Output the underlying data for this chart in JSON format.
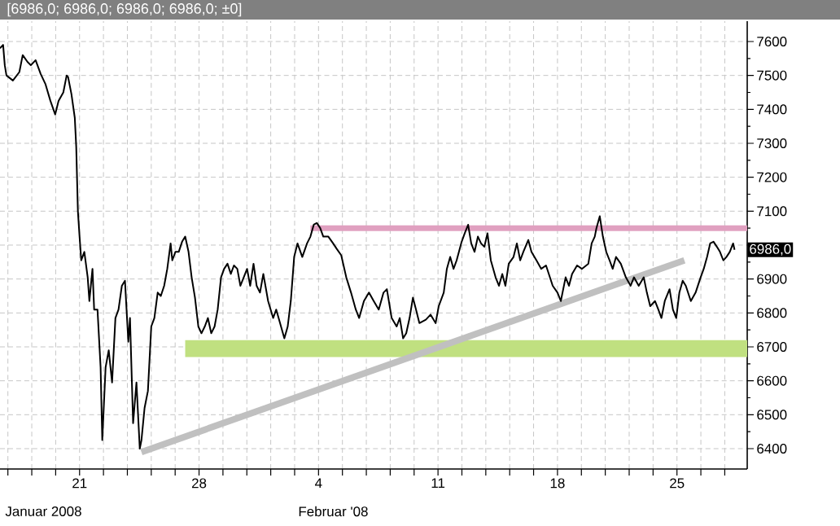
{
  "chart_data": {
    "type": "line",
    "title": "[6986,0; 6986,0; 6986,0; 6986,0; ±0]",
    "xlim": [
      "2008-01-16T08:07",
      "2008-02-29T02:47"
    ],
    "ylim": [
      6340,
      7660
    ],
    "xticks": [
      {
        "value": "2008-01-16T19:12",
        "label": null
      },
      {
        "value": "2008-01-18T04:48",
        "label": null
      },
      {
        "value": "2008-01-19T14:24",
        "label": null
      },
      {
        "value": "2008-01-21",
        "label": "21"
      },
      {
        "value": "2008-01-22T09:36",
        "label": null
      },
      {
        "value": "2008-01-23T19:12",
        "label": null
      },
      {
        "value": "2008-01-25T04:48",
        "label": null
      },
      {
        "value": "2008-01-26T14:24",
        "label": null
      },
      {
        "value": "2008-01-28",
        "label": "28"
      },
      {
        "value": "2008-01-29T09:36",
        "label": null
      },
      {
        "value": "2008-01-30T19:12",
        "label": null
      },
      {
        "value": "2008-02-01T04:48",
        "label": null
      },
      {
        "value": "2008-02-02T14:24",
        "label": null
      },
      {
        "value": "2008-02-04",
        "label": "4"
      },
      {
        "value": "2008-02-05T09:36",
        "label": null
      },
      {
        "value": "2008-02-06T19:12",
        "label": null
      },
      {
        "value": "2008-02-08T04:48",
        "label": null
      },
      {
        "value": "2008-02-09T14:24",
        "label": null
      },
      {
        "value": "2008-02-11",
        "label": "11"
      },
      {
        "value": "2008-02-12T09:36",
        "label": null
      },
      {
        "value": "2008-02-13T19:12",
        "label": null
      },
      {
        "value": "2008-02-15T04:48",
        "label": null
      },
      {
        "value": "2008-02-16T14:24",
        "label": null
      },
      {
        "value": "2008-02-18",
        "label": "18"
      },
      {
        "value": "2008-02-19T09:36",
        "label": null
      },
      {
        "value": "2008-02-20T19:12",
        "label": null
      },
      {
        "value": "2008-02-22T04:48",
        "label": null
      },
      {
        "value": "2008-02-23T14:24",
        "label": null
      },
      {
        "value": "2008-02-25",
        "label": "25"
      },
      {
        "value": "2008-02-26T09:36",
        "label": null
      },
      {
        "value": "2008-02-27T19:12",
        "label": null
      }
    ],
    "yticks": [
      6400,
      6500,
      6600,
      6700,
      6800,
      6900,
      {
        "value": 7000,
        "label": null
      },
      7100,
      7200,
      7300,
      7400,
      7500,
      7600
    ],
    "grid": true,
    "annotations": [
      "6986,0",
      "Januar 2008",
      "Februar '08"
    ],
    "series": [
      {
        "type": "line",
        "color": "#c0e080",
        "x": [
          "2008-01-27T04:31",
          "2008-02-29T02:47"
        ],
        "values": [
          6695,
          6695
        ]
      },
      {
        "type": "line",
        "color": "#c0c0c0",
        "x": [
          "2008-01-24T15:01",
          "2008-02-25T10:25"
        ],
        "values": [
          6390,
          6955
        ]
      },
      {
        "type": "line",
        "color": "#e0a0c0",
        "x": [
          "2008-02-03T12:35",
          "2008-02-29T02:47"
        ],
        "values": [
          7050,
          7050
        ]
      },
      {
        "color": "#000000",
        "x": [
          "2008-01-16T08:07",
          "2008-01-16T12:29",
          "2008-01-16T14:50",
          "2008-01-16T17:11",
          "2008-01-17T02:15",
          "2008-01-17T11:20",
          "2008-01-17T16:02",
          "2008-01-17T22:45",
          "2008-01-18T03:27",
          "2008-01-18T10:11",
          "2008-01-18T17:14",
          "2008-01-18T23:57",
          "2008-01-19T07:00",
          "2008-01-19T13:44",
          "2008-01-19T18:26",
          "2008-01-20T01:09",
          "2008-01-20T05:51",
          "2008-01-20T07:52",
          "2008-01-20T12:35",
          "2008-01-20T17:17",
          "2008-01-20T19:18",
          "2008-01-20T21:39",
          "2008-01-21T00:00",
          "2008-01-21T02:21",
          "2008-01-21T06:43",
          "2008-01-21T11:25",
          "2008-01-21T13:47",
          "2008-01-21T18:09",
          "2008-01-21T20:30",
          "2008-01-22T01:12",
          "2008-01-22T05:34",
          "2008-01-22T07:55",
          "2008-01-22T12:37",
          "2008-01-22T17:00",
          "2008-01-22T21:42",
          "2008-01-23T02:24",
          "2008-01-23T06:46",
          "2008-01-23T11:28",
          "2008-01-23T15:50",
          "2008-01-23T20:33",
          "2008-01-23T22:54",
          "2008-01-24T03:16",
          "2008-01-24T07:58",
          "2008-01-24T12:40",
          "2008-01-24T15:01",
          "2008-01-24T19:24",
          "2008-01-25T00:06",
          "2008-01-25T04:48",
          "2008-01-25T09:10",
          "2008-01-25T13:52",
          "2008-01-25T18:14",
          "2008-01-25T22:57",
          "2008-01-26T03:19",
          "2008-01-26T08:01",
          "2008-01-26T10:22",
          "2008-01-26T14:44",
          "2008-01-26T19:26",
          "2008-01-27T00:09",
          "2008-01-27T04:31",
          "2008-01-27T09:13",
          "2008-01-27T13:35",
          "2008-01-27T18:17",
          "2008-01-27T23:00",
          "2008-01-28T03:22",
          "2008-01-28T08:04",
          "2008-01-28T12:26",
          "2008-01-28T17:08",
          "2008-01-28T21:50",
          "2008-01-29T02:12",
          "2008-01-29T06:55",
          "2008-01-29T11:17",
          "2008-01-29T15:59",
          "2008-01-29T20:41",
          "2008-01-30T01:03",
          "2008-01-30T05:46",
          "2008-01-30T10:08",
          "2008-01-30T14:50",
          "2008-01-30T19:32",
          "2008-01-30T23:54",
          "2008-01-31T04:36",
          "2008-01-31T08:59",
          "2008-01-31T13:41",
          "2008-01-31T18:23",
          "2008-02-01T01:06",
          "2008-02-01T08:10",
          "2008-02-01T12:32",
          "2008-02-01T17:14",
          "2008-02-01T23:57",
          "2008-02-02T04:39",
          "2008-02-02T09:01",
          "2008-02-02T13:44",
          "2008-02-02T18:26",
          "2008-02-03T01:09",
          "2008-02-03T07:52",
          "2008-02-03T12:35",
          "2008-02-03T17:17",
          "2008-02-03T21:39",
          "2008-02-04T02:21",
          "2008-02-04T06:43",
          "2008-02-04T13:47",
          "2008-02-04T20:30",
          "2008-02-05T01:12",
          "2008-02-05T07:55",
          "2008-02-05T14:59",
          "2008-02-05T21:42",
          "2008-02-06T04:25",
          "2008-02-06T09:07",
          "2008-02-06T15:50",
          "2008-02-06T22:54",
          "2008-02-07T05:37",
          "2008-02-07T12:40",
          "2008-02-07T19:24",
          "2008-02-08T00:06",
          "2008-02-08T06:49",
          "2008-02-08T13:52",
          "2008-02-08T18:14",
          "2008-02-08T22:57",
          "2008-02-09T03:19",
          "2008-02-09T08:01",
          "2008-02-09T12:43",
          "2008-02-09T17:05",
          "2008-02-09T21:48",
          "2008-02-10T06:52",
          "2008-02-10T13:35",
          "2008-02-10T20:38",
          "2008-02-11T01:00",
          "2008-02-11T08:04",
          "2008-02-11T12:26",
          "2008-02-11T17:08",
          "2008-02-11T21:50",
          "2008-02-12T02:12",
          "2008-02-12T09:16",
          "2008-02-12T13:38",
          "2008-02-12T18:20",
          "2008-02-12T22:42",
          "2008-02-13T03:24",
          "2008-02-13T08:07",
          "2008-02-13T12:29",
          "2008-02-13T17:11",
          "2008-02-13T21:33",
          "2008-02-14T02:15",
          "2008-02-14T08:59",
          "2008-02-14T13:41",
          "2008-02-14T18:23",
          "2008-02-14T22:45",
          "2008-02-15T03:27",
          "2008-02-15T10:11",
          "2008-02-15T14:53",
          "2008-02-15T19:35",
          "2008-02-15T23:57",
          "2008-02-16T07:00",
          "2008-02-16T11:23",
          "2008-02-16T18:26",
          "2008-02-17T01:09",
          "2008-02-17T07:52",
          "2008-02-17T17:17",
          "2008-02-18T00:00",
          "2008-02-18T04:42",
          "2008-02-18T11:25",
          "2008-02-18T16:08",
          "2008-02-18T20:30",
          "2008-02-19T03:33",
          "2008-02-19T10:16",
          "2008-02-19T19:21",
          "2008-02-20T00:03",
          "2008-02-20T04:25",
          "2008-02-20T06:46",
          "2008-02-20T11:28",
          "2008-02-20T15:50",
          "2008-02-20T20:33",
          "2008-02-21T01:15",
          "2008-02-21T05:37",
          "2008-02-21T10:19",
          "2008-02-21T17:02",
          "2008-02-22T00:06",
          "2008-02-22T06:49",
          "2008-02-22T11:31",
          "2008-02-22T18:14",
          "2008-02-23T01:18",
          "2008-02-23T05:40",
          "2008-02-23T10:22",
          "2008-02-23T17:05",
          "2008-02-23T21:48",
          "2008-02-24T02:10",
          "2008-02-24T06:52",
          "2008-02-24T13:35",
          "2008-02-24T18:17",
          "2008-02-24T23:00",
          "2008-02-25T03:22",
          "2008-02-25T08:04",
          "2008-02-25T12:26",
          "2008-02-25T19:29",
          "2008-02-26T02:12",
          "2008-02-26T09:16",
          "2008-02-26T13:38",
          "2008-02-26T18:20",
          "2008-02-26T22:42",
          "2008-02-27T03:24",
          "2008-02-27T08:07",
          "2008-02-27T12:29",
          "2008-02-27T17:11",
          "2008-02-27T21:33",
          "2008-02-28T02:15",
          "2008-02-28T06:58",
          "2008-02-28T08:59"
        ],
        "values": [
          7580,
          7590,
          7530,
          7500,
          7485,
          7510,
          7560,
          7540,
          7530,
          7545,
          7505,
          7475,
          7425,
          7385,
          7425,
          7450,
          7500,
          7495,
          7445,
          7375,
          7290,
          7100,
          7025,
          6955,
          6980,
          6905,
          6835,
          6930,
          6810,
          6810,
          6640,
          6425,
          6640,
          6690,
          6595,
          6785,
          6810,
          6880,
          6895,
          6715,
          6785,
          6475,
          6595,
          6400,
          6425,
          6520,
          6570,
          6760,
          6785,
          6860,
          6850,
          6880,
          6930,
          7005,
          6955,
          6980,
          6980,
          7010,
          7025,
          6980,
          6905,
          6845,
          6760,
          6740,
          6760,
          6785,
          6740,
          6760,
          6810,
          6905,
          6930,
          6945,
          6915,
          6940,
          6930,
          6880,
          6905,
          6930,
          6880,
          6945,
          6880,
          6860,
          6915,
          6835,
          6785,
          6810,
          6775,
          6725,
          6760,
          6835,
          6965,
          7005,
          6965,
          7005,
          7025,
          7060,
          7065,
          7050,
          7025,
          7025,
          7005,
          6990,
          6970,
          6905,
          6860,
          6810,
          6785,
          6835,
          6860,
          6835,
          6810,
          6860,
          6870,
          6785,
          6760,
          6785,
          6725,
          6740,
          6785,
          6845,
          6810,
          6770,
          6780,
          6795,
          6770,
          6820,
          6860,
          6930,
          6965,
          6930,
          6955,
          7010,
          7035,
          7060,
          7005,
          6980,
          7025,
          7005,
          6995,
          7035,
          6955,
          6905,
          6880,
          6915,
          6880,
          6945,
          6965,
          7005,
          6955,
          6980,
          7015,
          6980,
          6955,
          6930,
          6940,
          6880,
          6860,
          6835,
          6905,
          6880,
          6915,
          6940,
          6930,
          6945,
          7005,
          7025,
          7050,
          7085,
          7025,
          6980,
          6955,
          6930,
          6965,
          6945,
          6905,
          6880,
          6905,
          6880,
          6905,
          6860,
          6820,
          6835,
          6810,
          6785,
          6835,
          6870,
          6810,
          6785,
          6860,
          6895,
          6880,
          6835,
          6860,
          6905,
          6930,
          6965,
          7005,
          7010,
          6995,
          6980,
          6955,
          6965,
          6980,
          7005,
          6986
        ]
      }
    ]
  }
}
